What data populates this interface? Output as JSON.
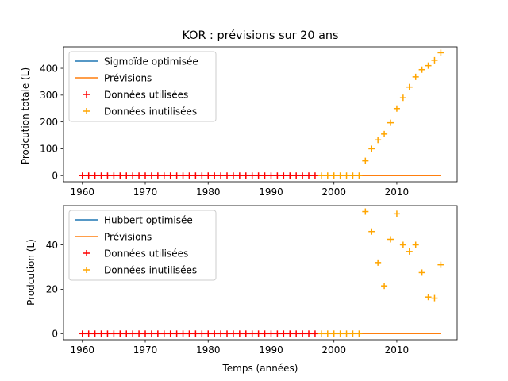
{
  "chart_data": [
    {
      "type": "line",
      "title": "KOR : prévisions sur 20 ans",
      "xlabel": "",
      "ylabel": "Prodcution totale (L)",
      "xlim": [
        1957,
        2019.6
      ],
      "ylim": [
        -23,
        480
      ],
      "xticks": [
        1960,
        1970,
        1980,
        1990,
        2000,
        2010
      ],
      "yticks": [
        0,
        100,
        200,
        300,
        400
      ],
      "legend": {
        "placement": "top-left",
        "entries": [
          {
            "label": "Sigmoïde optimisée",
            "kind": "line",
            "color": "#1f77b4"
          },
          {
            "label": "Prévisions",
            "kind": "line",
            "color": "#ff7f0e"
          },
          {
            "label": "Données utilisées",
            "kind": "plus",
            "color": "#ff0000"
          },
          {
            "label": "Données inutilisées",
            "kind": "plus",
            "color": "#ffa500"
          }
        ]
      },
      "series": [
        {
          "name": "Sigmoïde optimisée",
          "kind": "line",
          "color": "#1f77b4",
          "x": [
            1960,
            1997
          ],
          "y": [
            0,
            0
          ]
        },
        {
          "name": "Prévisions",
          "kind": "line",
          "color": "#ff7f0e",
          "x": [
            1997,
            2017
          ],
          "y": [
            0,
            0
          ]
        },
        {
          "name": "Données utilisées",
          "kind": "scatter",
          "color": "#ff0000",
          "x": [
            1960,
            1961,
            1962,
            1963,
            1964,
            1965,
            1966,
            1967,
            1968,
            1969,
            1970,
            1971,
            1972,
            1973,
            1974,
            1975,
            1976,
            1977,
            1978,
            1979,
            1980,
            1981,
            1982,
            1983,
            1984,
            1985,
            1986,
            1987,
            1988,
            1989,
            1990,
            1991,
            1992,
            1993,
            1994,
            1995,
            1996,
            1997
          ],
          "y": [
            0,
            0,
            0,
            0,
            0,
            0,
            0,
            0,
            0,
            0,
            0,
            0,
            0,
            0,
            0,
            0,
            0,
            0,
            0,
            0,
            0,
            0,
            0,
            0,
            0,
            0,
            0,
            0,
            0,
            0,
            0,
            0,
            0,
            0,
            0,
            0,
            0,
            0
          ]
        },
        {
          "name": "Données inutilisées",
          "kind": "scatter",
          "color": "#ffa500",
          "x": [
            1998,
            1999,
            2000,
            2001,
            2002,
            2003,
            2004,
            2005,
            2006,
            2007,
            2008,
            2009,
            2010,
            2011,
            2012,
            2013,
            2014,
            2015,
            2016,
            2017
          ],
          "y": [
            0,
            0,
            0,
            0,
            0,
            0,
            0,
            55,
            100,
            133,
            155,
            197,
            250,
            290,
            330,
            368,
            395,
            410,
            430,
            458
          ]
        }
      ]
    },
    {
      "type": "line",
      "title": "",
      "xlabel": "Temps (années)",
      "ylabel": "Prodcution (L)",
      "xlim": [
        1957,
        2019.6
      ],
      "ylim": [
        -2.75,
        57.7
      ],
      "xticks": [
        1960,
        1970,
        1980,
        1990,
        2000,
        2010
      ],
      "yticks": [
        0,
        20,
        40
      ],
      "legend": {
        "placement": "top-left",
        "entries": [
          {
            "label": "Hubbert optimisée",
            "kind": "line",
            "color": "#1f77b4"
          },
          {
            "label": "Prévisions",
            "kind": "line",
            "color": "#ff7f0e"
          },
          {
            "label": "Données utilisées",
            "kind": "plus",
            "color": "#ff0000"
          },
          {
            "label": "Données inutilisées",
            "kind": "plus",
            "color": "#ffa500"
          }
        ]
      },
      "series": [
        {
          "name": "Hubbert optimisée",
          "kind": "line",
          "color": "#1f77b4",
          "x": [
            1960,
            1997
          ],
          "y": [
            0,
            0
          ]
        },
        {
          "name": "Prévisions",
          "kind": "line",
          "color": "#ff7f0e",
          "x": [
            1997,
            2017
          ],
          "y": [
            0,
            0
          ]
        },
        {
          "name": "Données utilisées",
          "kind": "scatter",
          "color": "#ff0000",
          "x": [
            1960,
            1961,
            1962,
            1963,
            1964,
            1965,
            1966,
            1967,
            1968,
            1969,
            1970,
            1971,
            1972,
            1973,
            1974,
            1975,
            1976,
            1977,
            1978,
            1979,
            1980,
            1981,
            1982,
            1983,
            1984,
            1985,
            1986,
            1987,
            1988,
            1989,
            1990,
            1991,
            1992,
            1993,
            1994,
            1995,
            1996,
            1997
          ],
          "y": [
            0,
            0,
            0,
            0,
            0,
            0,
            0,
            0,
            0,
            0,
            0,
            0,
            0,
            0,
            0,
            0,
            0,
            0,
            0,
            0,
            0,
            0,
            0,
            0,
            0,
            0,
            0,
            0,
            0,
            0,
            0,
            0,
            0,
            0,
            0,
            0,
            0,
            0
          ]
        },
        {
          "name": "Données inutilisées",
          "kind": "scatter",
          "color": "#ffa500",
          "x": [
            1998,
            1999,
            2000,
            2001,
            2002,
            2003,
            2004,
            2005,
            2006,
            2007,
            2008,
            2009,
            2010,
            2011,
            2012,
            2013,
            2014,
            2015,
            2016,
            2017
          ],
          "y": [
            0,
            0,
            0,
            0,
            0,
            0,
            0,
            55,
            46,
            32,
            21.5,
            42.5,
            54,
            40,
            37,
            40,
            27.5,
            16.5,
            16,
            31
          ]
        }
      ]
    }
  ]
}
